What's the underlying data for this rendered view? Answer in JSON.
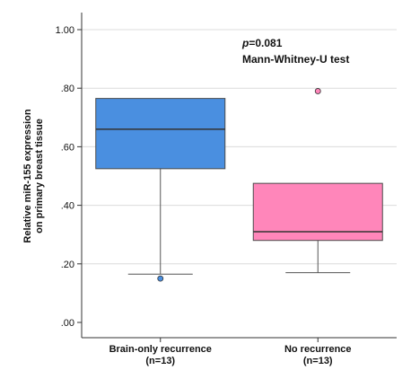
{
  "chart_data": {
    "type": "box",
    "ylabel_line1": "Relative miR-155 expression",
    "ylabel_line2": "on primary breast tissue",
    "ylim": [
      0,
      1.0
    ],
    "yticks": [
      0.0,
      0.2,
      0.4,
      0.6,
      0.8,
      1.0
    ],
    "ytick_labels": [
      ".00",
      ".20",
      ".40",
      ".60",
      ".80",
      "1.00"
    ],
    "grid": true,
    "annotation": {
      "p_symbol": "p",
      "p_value_text": "=0.081",
      "test": "Mann-Whitney-U test"
    },
    "groups": [
      {
        "label": "Brain-only recurrence",
        "n_label": "(n=13)",
        "color": "#4A8FE0",
        "q1": 0.525,
        "median": 0.66,
        "q3": 0.765,
        "whisker_low": 0.165,
        "whisker_high": 0.765,
        "outliers": [
          0.15
        ]
      },
      {
        "label": "No recurrence",
        "n_label": "(n=13)",
        "color": "#FF86BA",
        "q1": 0.28,
        "median": 0.31,
        "q3": 0.475,
        "whisker_low": 0.17,
        "whisker_high": 0.475,
        "outliers": [
          0.79
        ]
      }
    ]
  }
}
